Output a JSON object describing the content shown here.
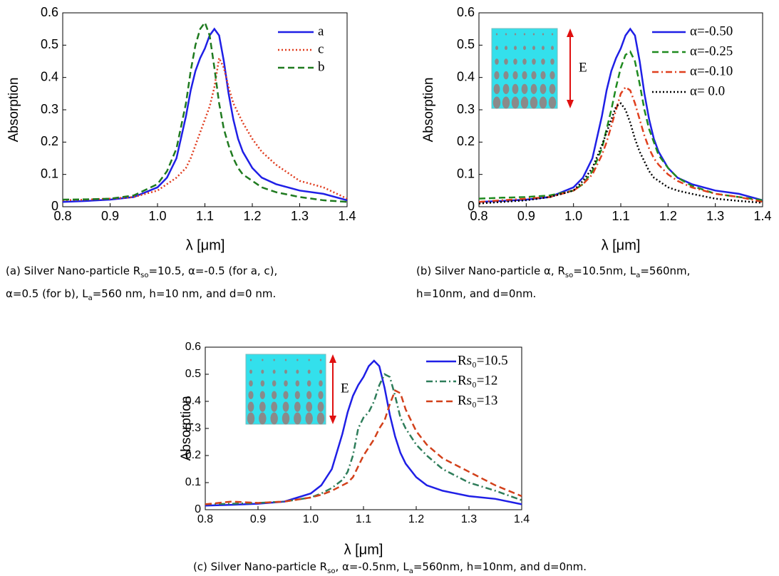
{
  "chart_data": [
    {
      "type": "line",
      "x_label": "λ [μm]",
      "y_label": "Absorption",
      "x": [
        0.8,
        0.85,
        0.9,
        0.95,
        1.0,
        1.02,
        1.04,
        1.06,
        1.07,
        1.08,
        1.09,
        1.1,
        1.11,
        1.12,
        1.13,
        1.14,
        1.15,
        1.16,
        1.17,
        1.18,
        1.2,
        1.22,
        1.25,
        1.3,
        1.35,
        1.4
      ],
      "xlim": [
        0.8,
        1.4
      ],
      "xticks": [
        0.8,
        0.9,
        {
          "value": 1,
          "label": "1.0"
        },
        1.1,
        1.2,
        1.3,
        1.4
      ],
      "ylim": [
        0,
        0.6
      ],
      "yticks": [
        0,
        0.1,
        0.2,
        0.3,
        0.4,
        0.5,
        0.6
      ],
      "legend": "upper right",
      "series": [
        {
          "name": "a",
          "color": "#1f1fe6",
          "linestyle": "solid",
          "values": [
            0.015,
            0.018,
            0.022,
            0.03,
            0.06,
            0.09,
            0.15,
            0.28,
            0.36,
            0.42,
            0.46,
            0.49,
            0.53,
            0.55,
            0.53,
            0.45,
            0.35,
            0.27,
            0.21,
            0.17,
            0.12,
            0.09,
            0.07,
            0.05,
            0.04,
            0.02
          ]
        },
        {
          "name": "c",
          "color": "#e03c1e",
          "linestyle": "dotted",
          "values": [
            0.02,
            0.022,
            0.025,
            0.03,
            0.05,
            0.07,
            0.09,
            0.12,
            0.15,
            0.19,
            0.23,
            0.27,
            0.31,
            0.37,
            0.46,
            0.43,
            0.37,
            0.32,
            0.29,
            0.26,
            0.21,
            0.17,
            0.13,
            0.08,
            0.06,
            0.025
          ]
        },
        {
          "name": "b",
          "color": "#1f7a1f",
          "linestyle": "dashed",
          "values": [
            0.022,
            0.023,
            0.025,
            0.035,
            0.07,
            0.11,
            0.18,
            0.32,
            0.42,
            0.5,
            0.55,
            0.57,
            0.53,
            0.43,
            0.32,
            0.24,
            0.19,
            0.15,
            0.12,
            0.1,
            0.08,
            0.06,
            0.045,
            0.03,
            0.02,
            0.015
          ]
        }
      ],
      "caption": [
        [
          "(a) Silver Nano-particle R",
          "so",
          "=10.5, α=-0.5 (for a, c),"
        ],
        [
          "α=0.5 (for b), L",
          "a",
          "=560 nm, h=10 nm, and d=0 nm."
        ]
      ]
    },
    {
      "type": "line",
      "x_label": "λ [μm]",
      "y_label": "Absorption",
      "x": [
        0.8,
        0.85,
        0.9,
        0.95,
        1.0,
        1.02,
        1.04,
        1.06,
        1.07,
        1.08,
        1.09,
        1.1,
        1.11,
        1.12,
        1.13,
        1.14,
        1.15,
        1.16,
        1.17,
        1.18,
        1.2,
        1.22,
        1.25,
        1.3,
        1.35,
        1.4
      ],
      "xlim": [
        0.8,
        1.4
      ],
      "xticks": [
        0.8,
        0.9,
        {
          "value": 1,
          "label": "1.0"
        },
        1.1,
        1.2,
        1.3,
        1.4
      ],
      "ylim": [
        0,
        0.6
      ],
      "yticks": [
        0,
        0.1,
        0.2,
        0.3,
        0.4,
        0.5,
        0.6
      ],
      "legend": "upper right",
      "annotations": [
        "E"
      ],
      "series": [
        {
          "name": "α=-0.50",
          "color": "#1f1fe6",
          "linestyle": "solid",
          "values": [
            0.015,
            0.018,
            0.022,
            0.03,
            0.06,
            0.09,
            0.15,
            0.28,
            0.36,
            0.42,
            0.46,
            0.49,
            0.53,
            0.55,
            0.53,
            0.45,
            0.35,
            0.27,
            0.21,
            0.17,
            0.12,
            0.09,
            0.07,
            0.05,
            0.04,
            0.02
          ]
        },
        {
          "name": "α=-0.25",
          "color": "#1f8a1f",
          "linestyle": "dashed",
          "values": [
            0.025,
            0.028,
            0.03,
            0.035,
            0.05,
            0.07,
            0.11,
            0.18,
            0.24,
            0.3,
            0.37,
            0.43,
            0.47,
            0.48,
            0.45,
            0.38,
            0.3,
            0.24,
            0.2,
            0.16,
            0.12,
            0.09,
            0.065,
            0.04,
            0.03,
            0.02
          ]
        },
        {
          "name": "α=-0.10",
          "color": "#e0401e",
          "linestyle": "dashdot",
          "values": [
            0.015,
            0.02,
            0.025,
            0.03,
            0.05,
            0.07,
            0.1,
            0.16,
            0.2,
            0.25,
            0.3,
            0.35,
            0.37,
            0.36,
            0.32,
            0.27,
            0.22,
            0.18,
            0.15,
            0.13,
            0.1,
            0.08,
            0.06,
            0.04,
            0.03,
            0.015
          ]
        },
        {
          "name": "α= 0.0",
          "color": "#000000",
          "linestyle": "dotted",
          "values": [
            0.01,
            0.015,
            0.02,
            0.03,
            0.05,
            0.08,
            0.12,
            0.19,
            0.23,
            0.27,
            0.31,
            0.32,
            0.3,
            0.26,
            0.21,
            0.17,
            0.14,
            0.11,
            0.09,
            0.08,
            0.06,
            0.05,
            0.04,
            0.025,
            0.018,
            0.012
          ]
        }
      ],
      "caption": [
        [
          "(b) Silver Nano-particle α, R",
          "so",
          "=10.5nm, L",
          "a",
          "=560nm,"
        ],
        [
          "h=10nm, and d=0nm."
        ]
      ]
    },
    {
      "type": "line",
      "x_label": "λ [μm]",
      "y_label": "Absorption",
      "x": [
        0.8,
        0.85,
        0.9,
        0.95,
        1.0,
        1.02,
        1.04,
        1.06,
        1.07,
        1.08,
        1.09,
        1.1,
        1.11,
        1.12,
        1.13,
        1.14,
        1.15,
        1.16,
        1.17,
        1.18,
        1.2,
        1.22,
        1.25,
        1.3,
        1.35,
        1.4
      ],
      "xlim": [
        0.8,
        1.4
      ],
      "xticks": [
        0.8,
        0.9,
        {
          "value": 1,
          "label": "1.0"
        },
        1.1,
        1.2,
        1.3,
        1.4
      ],
      "ylim": [
        0,
        0.6
      ],
      "yticks": [
        0,
        0.1,
        0.2,
        0.3,
        0.4,
        0.5,
        0.6
      ],
      "legend": "upper right",
      "annotations": [
        "E"
      ],
      "series": [
        {
          "name": "Rs₀=10.5",
          "color": "#1f1fe6",
          "linestyle": "solid",
          "values": [
            0.015,
            0.018,
            0.022,
            0.03,
            0.06,
            0.09,
            0.15,
            0.28,
            0.36,
            0.42,
            0.46,
            0.49,
            0.53,
            0.55,
            0.53,
            0.45,
            0.35,
            0.27,
            0.21,
            0.17,
            0.12,
            0.09,
            0.07,
            0.05,
            0.04,
            0.02
          ]
        },
        {
          "name": "Rs₀=12",
          "color": "#2e7d5a",
          "linestyle": "dashdot",
          "values": [
            0.02,
            0.022,
            0.025,
            0.03,
            0.045,
            0.06,
            0.08,
            0.11,
            0.14,
            0.2,
            0.3,
            0.34,
            0.36,
            0.4,
            0.46,
            0.5,
            0.49,
            0.42,
            0.34,
            0.3,
            0.24,
            0.2,
            0.15,
            0.1,
            0.07,
            0.035
          ]
        },
        {
          "name": "Rs₀=13",
          "color": "#d2401a",
          "linestyle": "dashed",
          "values": [
            0.02,
            0.03,
            0.025,
            0.03,
            0.045,
            0.055,
            0.07,
            0.09,
            0.1,
            0.12,
            0.16,
            0.2,
            0.23,
            0.26,
            0.3,
            0.33,
            0.39,
            0.44,
            0.43,
            0.37,
            0.29,
            0.24,
            0.19,
            0.14,
            0.09,
            0.05
          ]
        }
      ],
      "caption": [
        [
          "(c) Silver Nano-particle R",
          "so",
          ", α=-0.5nm, L",
          "a",
          "=560nm, h=10nm, and d=0nm."
        ]
      ]
    }
  ]
}
